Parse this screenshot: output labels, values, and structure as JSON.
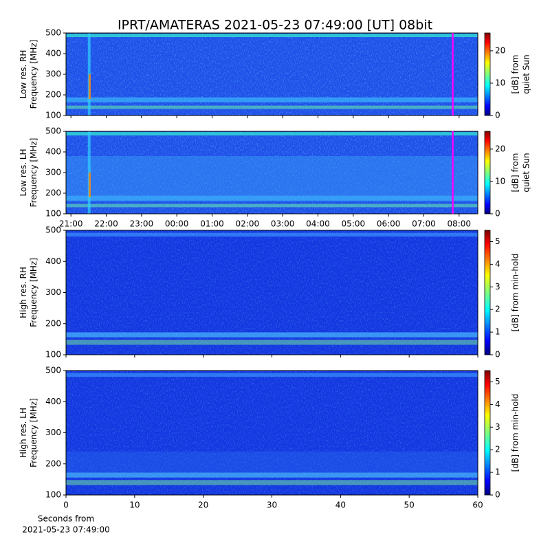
{
  "title": "IPRT/AMATERAS 2021-05-23 07:49:00 [UT]   08bit",
  "chart_data": [
    {
      "type": "heatmap",
      "ylabel": [
        "Low res. RH",
        "Frequency [MHz]"
      ],
      "ylim": [
        100,
        500
      ],
      "yticks": [
        100,
        200,
        300,
        400,
        500
      ],
      "xlim": [
        20.86,
        32.53
      ],
      "show_xtick_labels": false,
      "xticks": [
        {
          "value": 21,
          "label": "21:00"
        },
        {
          "value": 22,
          "label": "22:00"
        },
        {
          "value": 23,
          "label": "23:00"
        },
        {
          "value": 24,
          "label": "00:00"
        },
        {
          "value": 25,
          "label": "01:00"
        },
        {
          "value": 26,
          "label": "02:00"
        },
        {
          "value": 27,
          "label": "03:00"
        },
        {
          "value": 28,
          "label": "04:00"
        },
        {
          "value": 29,
          "label": "05:00"
        },
        {
          "value": 30,
          "label": "06:00"
        },
        {
          "value": 31,
          "label": "07:00"
        },
        {
          "value": 32,
          "label": "08:00"
        }
      ],
      "marker_line": {
        "value": 31.82,
        "color": "#ff00ff"
      },
      "clim": [
        0,
        25.5
      ],
      "cticks": [
        0,
        10,
        20
      ],
      "clabel": [
        "[dB] from",
        "quiet Sun"
      ]
    },
    {
      "type": "heatmap",
      "ylabel": [
        "Low res. LH",
        "Frequency [MHz]"
      ],
      "ylim": [
        100,
        500
      ],
      "yticks": [
        100,
        200,
        300,
        400,
        500
      ],
      "xlim": [
        20.86,
        32.53
      ],
      "show_xtick_labels": true,
      "xticks": [
        {
          "value": 21,
          "label": "21:00"
        },
        {
          "value": 22,
          "label": "22:00"
        },
        {
          "value": 23,
          "label": "23:00"
        },
        {
          "value": 24,
          "label": "00:00"
        },
        {
          "value": 25,
          "label": "01:00"
        },
        {
          "value": 26,
          "label": "02:00"
        },
        {
          "value": 27,
          "label": "03:00"
        },
        {
          "value": 28,
          "label": "04:00"
        },
        {
          "value": 29,
          "label": "05:00"
        },
        {
          "value": 30,
          "label": "06:00"
        },
        {
          "value": 31,
          "label": "07:00"
        },
        {
          "value": 32,
          "label": "08:00"
        }
      ],
      "marker_line": {
        "value": 31.82,
        "color": "#ff00ff"
      },
      "clim": [
        0,
        25.5
      ],
      "cticks": [
        0,
        10,
        20
      ],
      "clabel": [
        "[dB] from",
        "quiet Sun"
      ]
    },
    {
      "type": "heatmap",
      "ylabel": [
        "High res. RH",
        "Frequency [MHz]"
      ],
      "ylim": [
        100,
        500
      ],
      "yticks": [
        100,
        200,
        300,
        400,
        500
      ],
      "xlim": [
        0,
        60
      ],
      "show_xtick_labels": false,
      "xticks": [
        0,
        10,
        20,
        30,
        40,
        50,
        60
      ],
      "clim": [
        0,
        5.5
      ],
      "cticks": [
        0,
        1,
        2,
        3,
        4,
        5
      ],
      "clabel": [
        "[dB] from min-hold"
      ]
    },
    {
      "type": "heatmap",
      "ylabel": [
        "High res. LH",
        "Frequency [MHz]"
      ],
      "ylim": [
        100,
        500
      ],
      "yticks": [
        100,
        200,
        300,
        400,
        500
      ],
      "xlim": [
        0,
        60
      ],
      "show_xtick_labels": true,
      "xticks": [
        0,
        10,
        20,
        30,
        40,
        50,
        60
      ],
      "xlabel": [
        "Seconds from",
        "2021-05-23 07:49:00"
      ],
      "clim": [
        0,
        5.5
      ],
      "cticks": [
        0,
        1,
        2,
        3,
        4,
        5
      ],
      "clabel": [
        "[dB] from min-hold"
      ]
    }
  ]
}
